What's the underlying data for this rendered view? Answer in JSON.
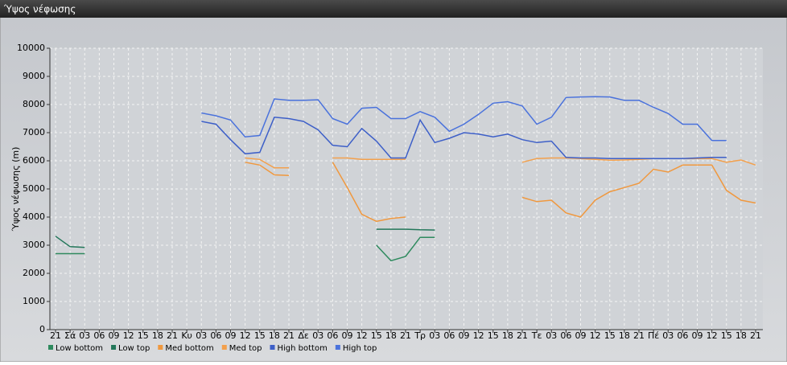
{
  "chart_data": {
    "type": "line",
    "title": "Ύψος νέφωσης",
    "ylabel": "Ύψος νέφωσης (m)",
    "categories": [
      "21",
      "Σά",
      "03",
      "06",
      "09",
      "12",
      "15",
      "18",
      "21",
      "Κυ",
      "03",
      "06",
      "09",
      "12",
      "15",
      "18",
      "21",
      "Δε",
      "03",
      "06",
      "09",
      "12",
      "15",
      "18",
      "21",
      "Τρ",
      "03",
      "06",
      "09",
      "12",
      "15",
      "18",
      "21",
      "Τε",
      "03",
      "06",
      "09",
      "12",
      "15",
      "18",
      "21",
      "Πέ",
      "03",
      "06",
      "09",
      "12",
      "15",
      "18",
      "21"
    ],
    "ylim": [
      0,
      10000
    ],
    "yticks": [
      0,
      1000,
      2000,
      3000,
      4000,
      5000,
      6000,
      7000,
      8000,
      9000,
      10000
    ],
    "grid": true,
    "series": [
      {
        "name": "Low bottom",
        "color": "#2e8a5e",
        "values": [
          2700,
          2700,
          2700,
          null,
          null,
          null,
          null,
          null,
          null,
          null,
          null,
          null,
          null,
          null,
          null,
          null,
          null,
          null,
          null,
          null,
          null,
          null,
          3000,
          2450,
          2600,
          3280,
          3280,
          null,
          null,
          null,
          null,
          null,
          null,
          null,
          null,
          null,
          null,
          null,
          null,
          null,
          null,
          null,
          null,
          null,
          null,
          null,
          null,
          null,
          null
        ]
      },
      {
        "name": "Low top",
        "color": "#23775a",
        "values": [
          3320,
          2950,
          2920,
          null,
          null,
          null,
          null,
          null,
          null,
          null,
          null,
          null,
          null,
          null,
          null,
          null,
          null,
          null,
          null,
          null,
          null,
          null,
          3570,
          3570,
          3570,
          3550,
          3540,
          null,
          null,
          null,
          null,
          null,
          null,
          null,
          null,
          null,
          null,
          null,
          null,
          null,
          null,
          null,
          null,
          null,
          null,
          null,
          null,
          null,
          null
        ]
      },
      {
        "name": "Med bottom",
        "color": "#f0983e",
        "values": [
          null,
          null,
          null,
          null,
          null,
          null,
          null,
          null,
          null,
          null,
          null,
          null,
          null,
          5950,
          5850,
          5500,
          5480,
          null,
          null,
          5950,
          5050,
          4100,
          3850,
          3950,
          4000,
          null,
          null,
          null,
          null,
          null,
          null,
          null,
          4700,
          4550,
          4600,
          4150,
          4000,
          4600,
          4900,
          5050,
          5200,
          5700,
          5600,
          5850,
          5850,
          5850,
          4950,
          4600,
          4500
        ]
      },
      {
        "name": "Med top",
        "color": "#f3a04c",
        "values": [
          null,
          null,
          null,
          null,
          null,
          null,
          null,
          null,
          null,
          null,
          null,
          null,
          null,
          6100,
          6050,
          5750,
          5750,
          null,
          null,
          6100,
          6100,
          6050,
          6050,
          6050,
          6050,
          null,
          null,
          null,
          null,
          null,
          null,
          null,
          5950,
          6080,
          6100,
          6100,
          6080,
          6050,
          6020,
          6030,
          6050,
          6080,
          6080,
          6080,
          6080,
          6080,
          5950,
          6030,
          5850
        ]
      },
      {
        "name": "High bottom",
        "color": "#3d5fc8",
        "values": [
          null,
          null,
          null,
          null,
          null,
          null,
          null,
          null,
          null,
          null,
          7400,
          7300,
          6750,
          6250,
          6300,
          7550,
          7500,
          7400,
          7100,
          6550,
          6500,
          7150,
          6700,
          6100,
          6100,
          7450,
          6650,
          6800,
          7000,
          6950,
          6850,
          6950,
          6750,
          6650,
          6700,
          6120,
          6100,
          6100,
          6080,
          6080,
          6080,
          6080,
          6080,
          6080,
          6100,
          6120,
          6120,
          null,
          null
        ]
      },
      {
        "name": "High top",
        "color": "#4a72dc",
        "values": [
          null,
          null,
          null,
          null,
          null,
          null,
          null,
          null,
          null,
          null,
          7700,
          7600,
          7450,
          6850,
          6900,
          8200,
          8150,
          8150,
          8170,
          7500,
          7300,
          7870,
          7900,
          7500,
          7500,
          7750,
          7550,
          7050,
          7300,
          7650,
          8050,
          8100,
          7950,
          7300,
          7550,
          8250,
          8270,
          8280,
          8270,
          8150,
          8150,
          7900,
          7680,
          7300,
          7300,
          6720,
          6720,
          null,
          null
        ]
      }
    ]
  }
}
